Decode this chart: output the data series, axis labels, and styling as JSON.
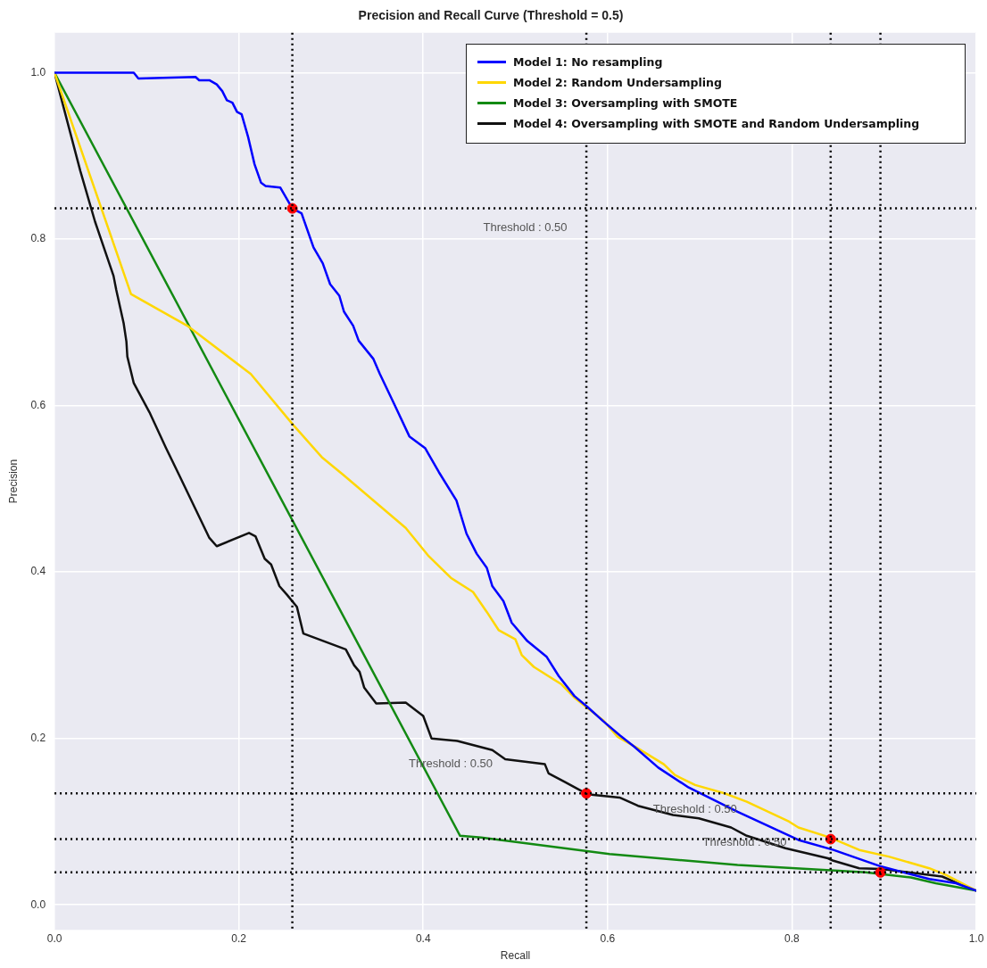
{
  "chart_data": {
    "type": "line",
    "title": "Precision and Recall Curve (Threshold = 0.5)",
    "xlabel": "Recall",
    "ylabel": "Precision",
    "xlim": [
      0,
      1
    ],
    "ylim": [
      -0.03,
      1.048
    ],
    "xticks": [
      {
        "value": 0,
        "label": "0.0"
      },
      {
        "value": 0.2,
        "label": "0.2"
      },
      {
        "value": 0.4,
        "label": "0.4"
      },
      {
        "value": 0.6,
        "label": "0.6"
      },
      {
        "value": 0.8,
        "label": "0.8"
      },
      {
        "value": 1,
        "label": "1.0"
      }
    ],
    "yticks": [
      {
        "value": 0,
        "label": "0.0"
      },
      {
        "value": 0.2,
        "label": "0.2"
      },
      {
        "value": 0.4,
        "label": "0.4"
      },
      {
        "value": 0.6,
        "label": "0.6"
      },
      {
        "value": 0.8,
        "label": "0.8"
      },
      {
        "value": 1,
        "label": "1.0"
      }
    ],
    "grid": true,
    "legend": "top right",
    "marker": "none",
    "line_style": "solid",
    "series": [
      {
        "name": "Model 1: No resampling",
        "color": "#0000ff",
        "x": [
          0,
          0.086,
          0.091,
          0.153,
          0.157,
          0.168,
          0.176,
          0.182,
          0.187,
          0.193,
          0.198,
          0.203,
          0.21,
          0.217,
          0.224,
          0.229,
          0.245,
          0.258,
          0.268,
          0.281,
          0.291,
          0.299,
          0.309,
          0.314,
          0.324,
          0.33,
          0.346,
          0.353,
          0.368,
          0.385,
          0.402,
          0.417,
          0.436,
          0.447,
          0.458,
          0.469,
          0.475,
          0.487,
          0.496,
          0.513,
          0.534,
          0.547,
          0.564,
          0.578,
          0.595,
          0.613,
          0.629,
          0.655,
          0.688,
          0.741,
          0.807,
          0.845,
          0.897,
          0.949,
          0.978,
          1.0
        ],
        "values": [
          1.0,
          1.0,
          0.993,
          0.995,
          0.991,
          0.991,
          0.986,
          0.978,
          0.967,
          0.964,
          0.953,
          0.95,
          0.923,
          0.89,
          0.868,
          0.864,
          0.862,
          0.837,
          0.831,
          0.79,
          0.771,
          0.746,
          0.732,
          0.713,
          0.696,
          0.678,
          0.656,
          0.638,
          0.603,
          0.563,
          0.549,
          0.52,
          0.486,
          0.446,
          0.422,
          0.405,
          0.383,
          0.365,
          0.339,
          0.317,
          0.298,
          0.275,
          0.251,
          0.238,
          0.221,
          0.204,
          0.19,
          0.165,
          0.141,
          0.112,
          0.078,
          0.066,
          0.046,
          0.031,
          0.026,
          0.017
        ]
      },
      {
        "name": "Model 2: Random Undersampling",
        "color": "#ffd700",
        "x": [
          0,
          0.083,
          0.144,
          0.213,
          0.258,
          0.29,
          0.313,
          0.381,
          0.406,
          0.43,
          0.454,
          0.469,
          0.482,
          0.5,
          0.507,
          0.52,
          0.55,
          0.564,
          0.595,
          0.611,
          0.633,
          0.661,
          0.673,
          0.695,
          0.727,
          0.751,
          0.797,
          0.807,
          0.841,
          0.873,
          0.905,
          0.949,
          0.967,
          1.0
        ],
        "values": [
          1.0,
          0.734,
          0.696,
          0.638,
          0.578,
          0.538,
          0.517,
          0.453,
          0.419,
          0.393,
          0.376,
          0.352,
          0.33,
          0.319,
          0.3,
          0.286,
          0.265,
          0.249,
          0.222,
          0.202,
          0.188,
          0.169,
          0.156,
          0.144,
          0.134,
          0.124,
          0.1,
          0.093,
          0.081,
          0.066,
          0.058,
          0.044,
          0.036,
          0.017
        ]
      },
      {
        "name": "Model 3: Oversampling with SMOTE",
        "color": "#138a13",
        "x": [
          0,
          0.44,
          0.463,
          0.602,
          0.741,
          0.88,
          0.929,
          0.956,
          1.0
        ],
        "values": [
          1.0,
          0.083,
          0.081,
          0.061,
          0.048,
          0.039,
          0.033,
          0.026,
          0.017
        ]
      },
      {
        "name": "Model 4: Oversampling with SMOTE and Random Undersampling",
        "color": "#111111",
        "x": [
          0,
          0.028,
          0.044,
          0.064,
          0.067,
          0.075,
          0.078,
          0.079,
          0.086,
          0.103,
          0.121,
          0.135,
          0.168,
          0.176,
          0.211,
          0.218,
          0.228,
          0.235,
          0.244,
          0.252,
          0.263,
          0.27,
          0.316,
          0.325,
          0.331,
          0.336,
          0.349,
          0.381,
          0.4,
          0.409,
          0.437,
          0.475,
          0.489,
          0.532,
          0.536,
          0.553,
          0.578,
          0.613,
          0.633,
          0.671,
          0.699,
          0.734,
          0.751,
          0.793,
          0.839,
          0.845,
          0.873,
          0.897,
          0.963,
          0.978,
          1.0
        ],
        "values": [
          1.0,
          0.882,
          0.821,
          0.756,
          0.739,
          0.699,
          0.677,
          0.659,
          0.627,
          0.592,
          0.549,
          0.517,
          0.441,
          0.431,
          0.447,
          0.443,
          0.416,
          0.409,
          0.383,
          0.373,
          0.358,
          0.326,
          0.307,
          0.288,
          0.28,
          0.261,
          0.242,
          0.243,
          0.227,
          0.2,
          0.197,
          0.186,
          0.175,
          0.169,
          0.158,
          0.148,
          0.133,
          0.129,
          0.119,
          0.108,
          0.104,
          0.093,
          0.083,
          0.068,
          0.056,
          0.053,
          0.044,
          0.043,
          0.034,
          0.027,
          0.017
        ]
      },
      {
        "type": "scatter",
        "marker": "circle",
        "color": "#ff0000",
        "x": [
          0.258,
          0.577,
          0.842,
          0.896
        ],
        "values": [
          0.837,
          0.134,
          0.079,
          0.039
        ]
      }
    ],
    "ref_lines": [
      {
        "axis": "x",
        "value": 0.258,
        "color": "#000000",
        "line_style": "dotted"
      },
      {
        "axis": "x",
        "value": 0.577,
        "color": "#000000",
        "line_style": "dotted"
      },
      {
        "axis": "x",
        "value": 0.842,
        "color": "#000000",
        "line_style": "dotted"
      },
      {
        "axis": "x",
        "value": 0.896,
        "color": "#000000",
        "line_style": "dotted"
      },
      {
        "axis": "y",
        "value": 0.837,
        "color": "#000000",
        "line_style": "dotted"
      },
      {
        "axis": "y",
        "value": 0.134,
        "color": "#000000",
        "line_style": "dotted"
      },
      {
        "axis": "y",
        "value": 0.079,
        "color": "#000000",
        "line_style": "dotted"
      },
      {
        "axis": "y",
        "value": 0.039,
        "color": "#000000",
        "line_style": "dotted"
      }
    ],
    "annotations": [
      "Threshold : 0.50",
      "Threshold : 0.50",
      "Threshold : 0.50",
      "Threshold : 0.50"
    ]
  }
}
